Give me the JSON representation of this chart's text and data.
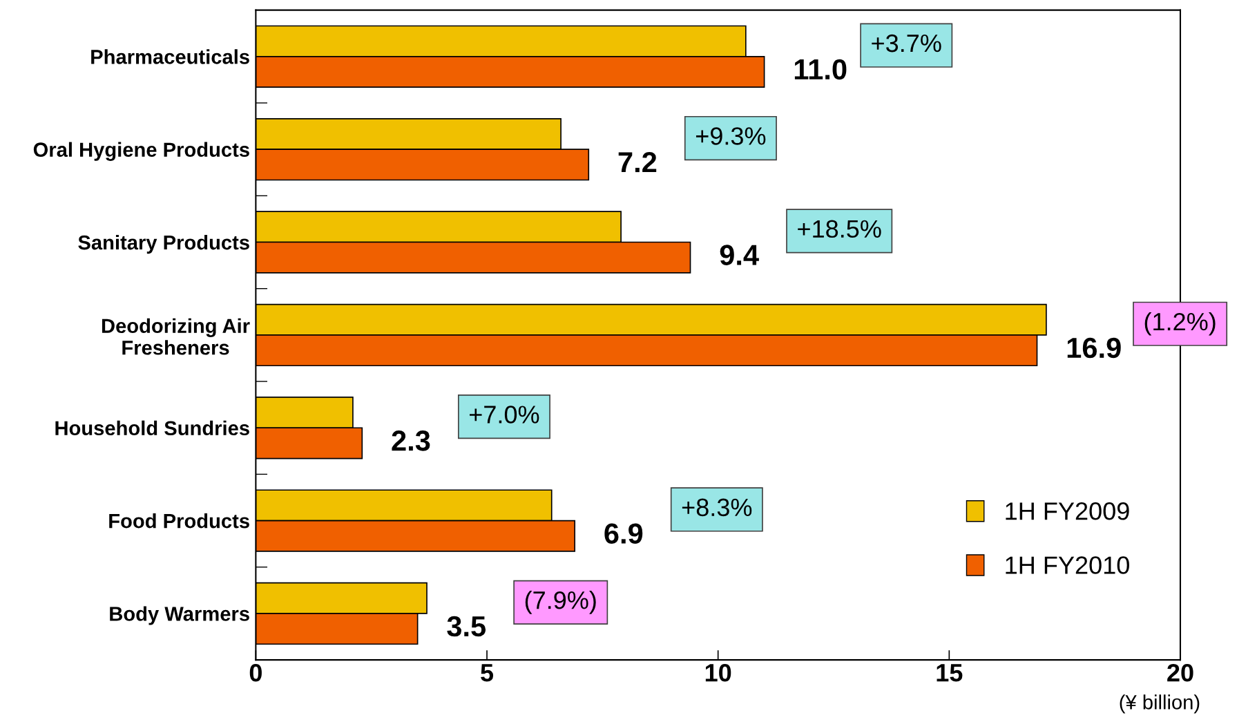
{
  "chart_data": {
    "type": "bar",
    "orientation": "horizontal",
    "categories": [
      "Pharmaceuticals",
      "Oral Hygiene Products",
      "Sanitary Products",
      "Deodorizing Air\nFresheners",
      "Household Sundries",
      "Food Products",
      "Body Warmers"
    ],
    "series": [
      {
        "name": "1H FY2009",
        "color": "#f0c000",
        "values": [
          10.6,
          6.6,
          7.9,
          17.1,
          2.1,
          6.4,
          3.7
        ]
      },
      {
        "name": "1H FY2010",
        "color": "#f06000",
        "values": [
          11.0,
          7.2,
          9.4,
          16.9,
          2.3,
          6.9,
          3.5
        ],
        "value_labels": [
          "11.0",
          "7.2",
          "9.4",
          "16.9",
          "2.3",
          "6.9",
          "3.5"
        ]
      }
    ],
    "xlim": [
      0,
      20
    ],
    "xticks": [
      0,
      5,
      10,
      15,
      20
    ],
    "annotations": [
      "+3.7%",
      "+9.3%",
      "+18.5%",
      "(1.2%)",
      "+7.0%",
      "+8.3%",
      "(7.9%)",
      "(¥ billion)"
    ],
    "legend": "bottom right",
    "grid": false
  }
}
